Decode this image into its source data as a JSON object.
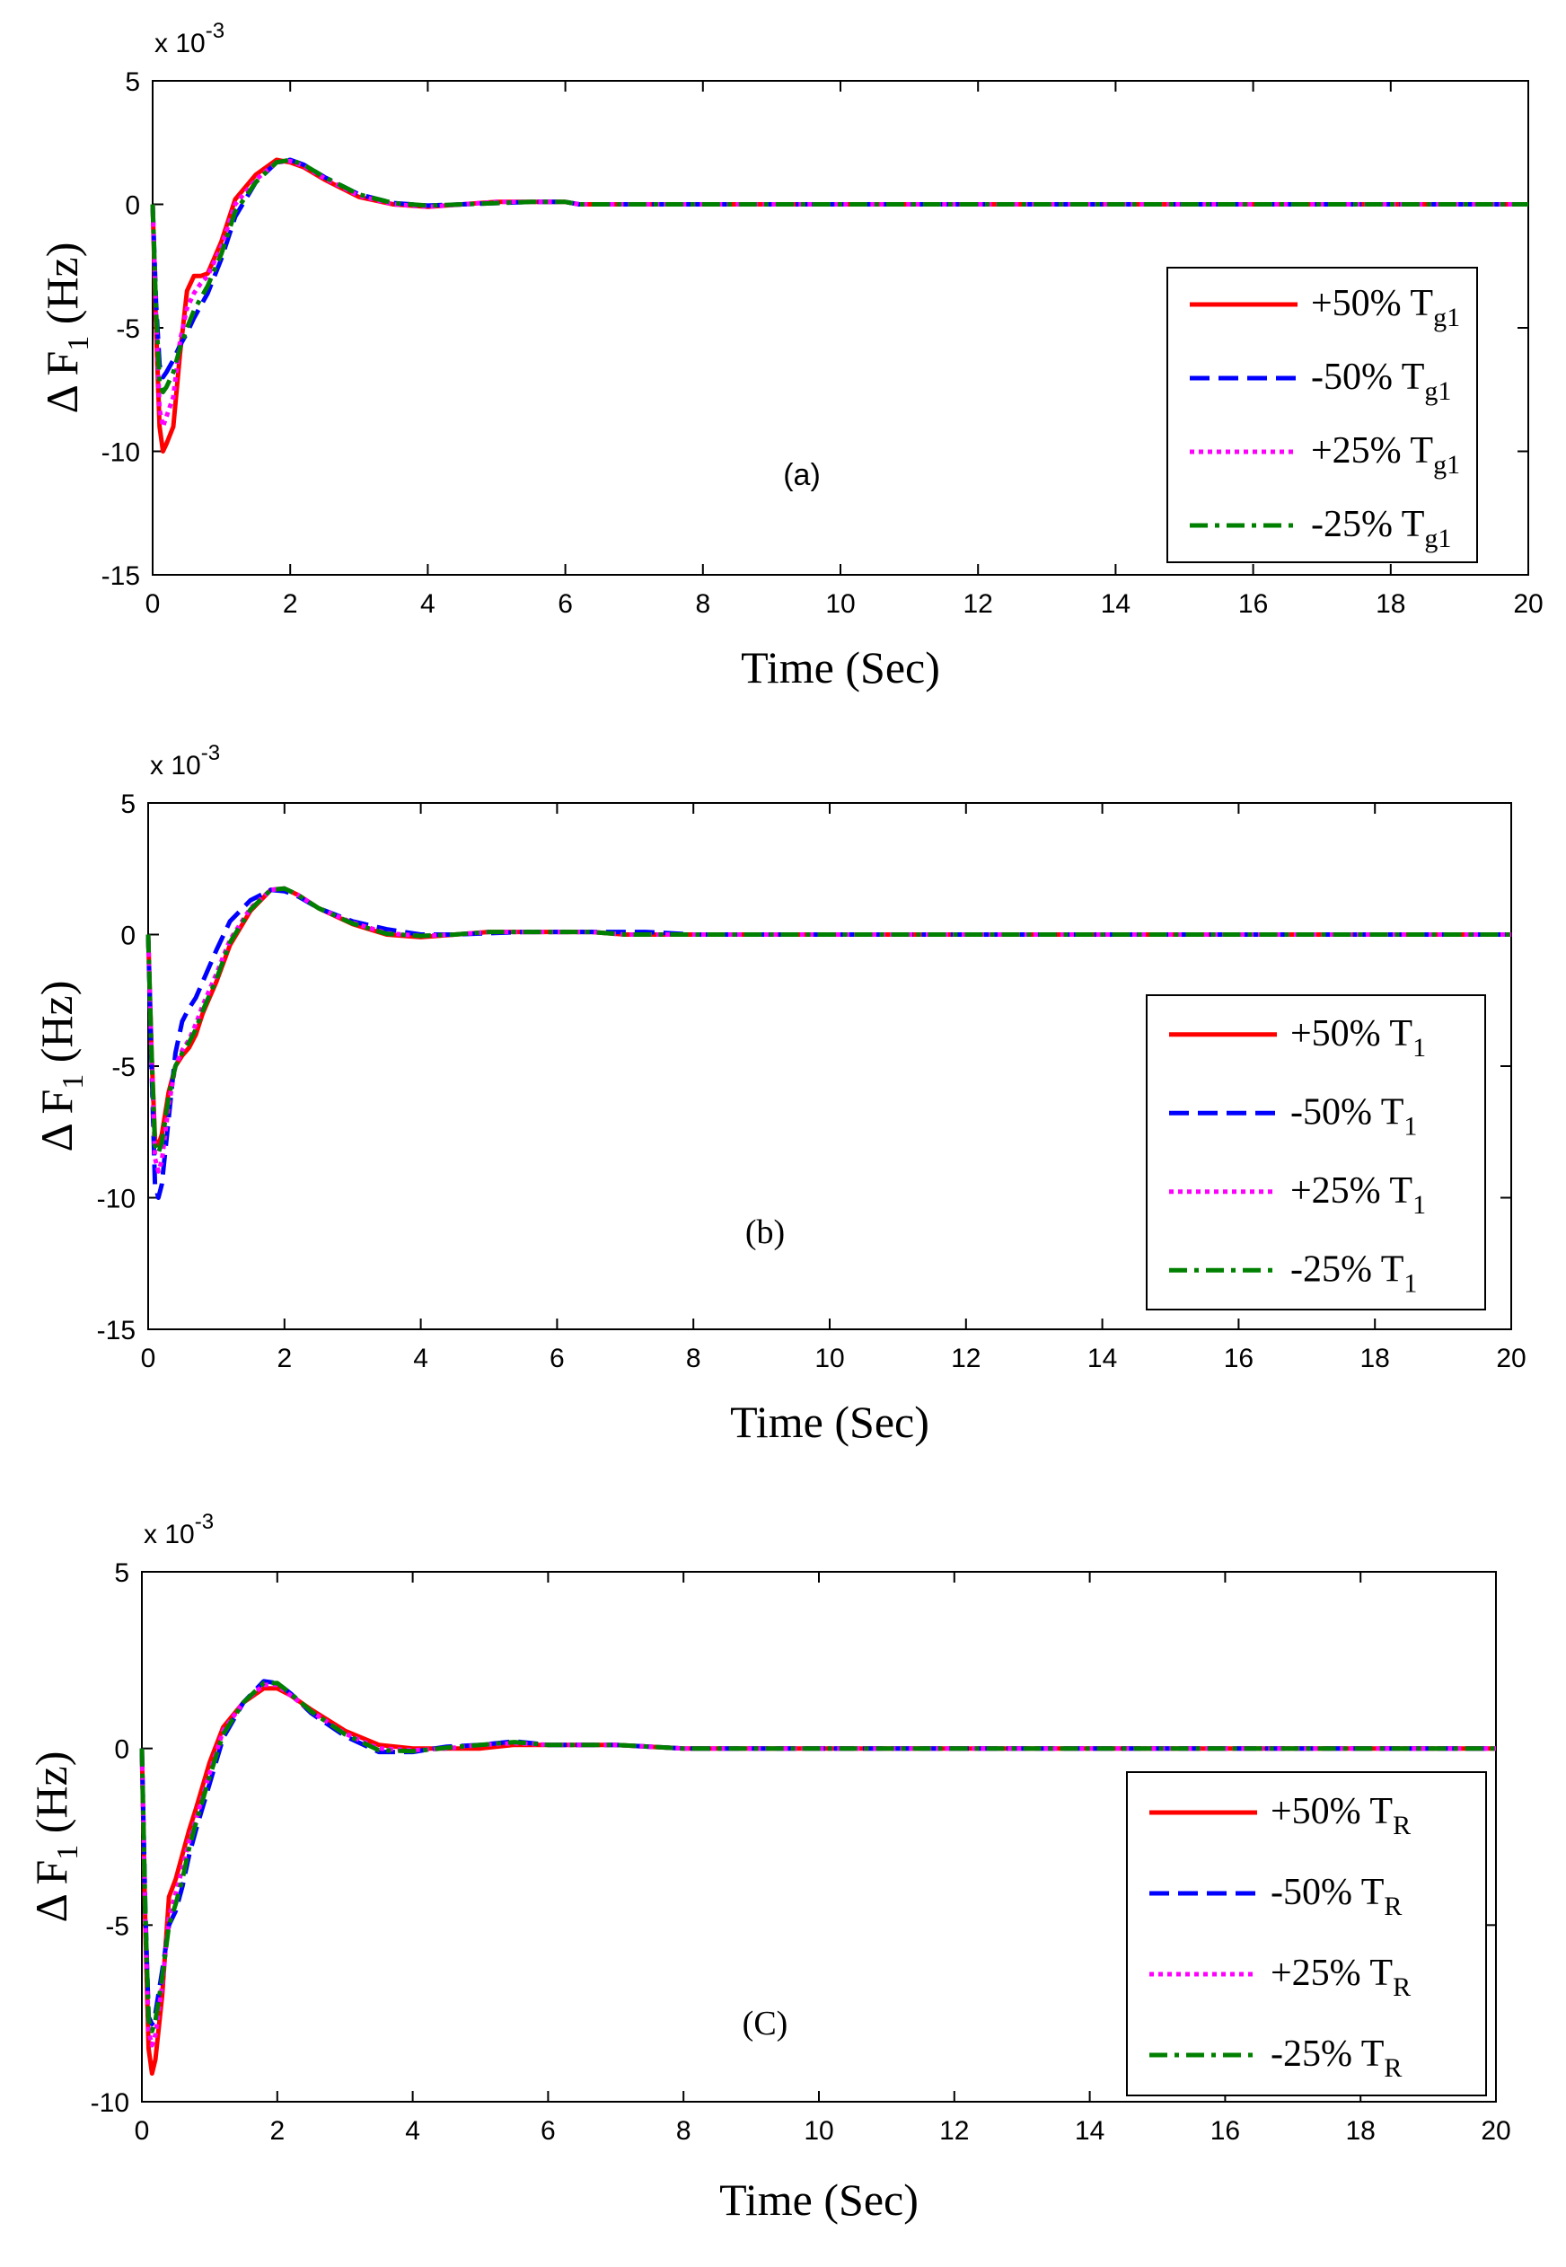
{
  "chart_data": [
    {
      "type": "line",
      "panel_label": "(a)",
      "xlabel": "Time (Sec)",
      "ylabel": {
        "prefix": "Δ F",
        "sub": "1",
        "suffix": " (Hz)"
      },
      "y_multiplier": {
        "base": "x 10",
        "exp": "-3"
      },
      "xlim": [
        0,
        20
      ],
      "ylim": [
        -15,
        5
      ],
      "xticks": [
        "0",
        "2",
        "4",
        "6",
        "8",
        "10",
        "12",
        "14",
        "16",
        "18",
        "20"
      ],
      "yticks": [
        "5",
        "0",
        "-5",
        "-10",
        "-15"
      ],
      "series": [
        {
          "name": "+50% T",
          "sub": "g1",
          "color": "#ff0000",
          "style": "solid",
          "x": [
            0,
            0.05,
            0.1,
            0.15,
            0.2,
            0.3,
            0.4,
            0.5,
            0.6,
            0.7,
            0.8,
            1,
            1.2,
            1.5,
            1.8,
            2,
            2.2,
            2.5,
            3,
            3.5,
            4,
            4.5,
            5,
            5.5,
            6,
            6.2,
            7,
            8,
            10,
            12,
            14,
            16,
            18,
            20
          ],
          "y": [
            0,
            -5,
            -9,
            -10,
            -9.7,
            -9,
            -6,
            -3.5,
            -2.9,
            -2.9,
            -2.8,
            -1.5,
            0.2,
            1.2,
            1.8,
            1.7,
            1.5,
            1,
            0.3,
            0,
            -0.1,
            0,
            0.1,
            0.1,
            0.1,
            0,
            0,
            0,
            0,
            0,
            0,
            0,
            0,
            0
          ]
        },
        {
          "name": "-50% T",
          "sub": "g1",
          "color": "#0000ff",
          "style": "dashed",
          "x": [
            0,
            0.05,
            0.1,
            0.15,
            0.2,
            0.3,
            0.4,
            0.5,
            0.6,
            0.7,
            0.8,
            1,
            1.2,
            1.5,
            1.8,
            2,
            2.2,
            2.5,
            3,
            3.5,
            4,
            4.5,
            5,
            5.5,
            6,
            6.2,
            7,
            8,
            10,
            12,
            14,
            16,
            18,
            20
          ],
          "y": [
            0,
            -4,
            -6.5,
            -7,
            -6.8,
            -6.3,
            -5.7,
            -5.2,
            -4.6,
            -4.1,
            -3.6,
            -2.2,
            -0.5,
            0.9,
            1.7,
            1.8,
            1.6,
            1.1,
            0.4,
            0.05,
            -0.05,
            0,
            0.05,
            0.1,
            0.1,
            0,
            0,
            0,
            0,
            0,
            0,
            0,
            0,
            0
          ]
        },
        {
          "name": "+25% T",
          "sub": "g1",
          "color": "#ff00ff",
          "style": "dotted",
          "x": [
            0,
            0.05,
            0.1,
            0.15,
            0.2,
            0.3,
            0.4,
            0.5,
            0.6,
            0.7,
            0.8,
            1,
            1.2,
            1.5,
            1.8,
            2,
            2.2,
            2.5,
            3,
            3.5,
            4,
            4.5,
            5,
            5.5,
            6,
            6.2,
            7,
            8,
            10,
            12,
            14,
            16,
            18,
            20
          ],
          "y": [
            0,
            -4.5,
            -8.3,
            -9,
            -8.6,
            -7.8,
            -5.5,
            -4.2,
            -3.6,
            -3.2,
            -2.9,
            -1.7,
            0,
            1,
            1.7,
            1.75,
            1.55,
            1.05,
            0.35,
            0,
            -0.1,
            0,
            0.1,
            0.1,
            0.1,
            0,
            0,
            0,
            0,
            0,
            0,
            0,
            0,
            0
          ]
        },
        {
          "name": "-25% T",
          "sub": "g1",
          "color": "#008000",
          "style": "dashdot",
          "x": [
            0,
            0.05,
            0.1,
            0.15,
            0.2,
            0.3,
            0.4,
            0.5,
            0.6,
            0.7,
            0.8,
            1,
            1.2,
            1.5,
            1.8,
            2,
            2.2,
            2.5,
            3,
            3.5,
            4,
            4.5,
            5,
            5.5,
            6,
            6.2,
            7,
            8,
            10,
            12,
            14,
            16,
            18,
            20
          ],
          "y": [
            0,
            -4.3,
            -7.2,
            -7.6,
            -7.4,
            -6.8,
            -5.8,
            -5,
            -4.3,
            -3.8,
            -3.3,
            -2,
            -0.3,
            0.9,
            1.7,
            1.8,
            1.6,
            1.1,
            0.4,
            0.05,
            -0.05,
            0,
            0.05,
            0.1,
            0.1,
            0,
            0,
            0,
            0,
            0,
            0,
            0,
            0,
            0
          ]
        }
      ]
    },
    {
      "type": "line",
      "panel_label": "(b)",
      "xlabel": "Time (Sec)",
      "ylabel": {
        "prefix": "Δ F",
        "sub": "1",
        "suffix": " (Hz)"
      },
      "y_multiplier": {
        "base": "x 10",
        "exp": "-3"
      },
      "xlim": [
        0,
        20
      ],
      "ylim": [
        -15,
        5
      ],
      "xticks": [
        "0",
        "2",
        "4",
        "6",
        "8",
        "10",
        "12",
        "14",
        "16",
        "18",
        "20"
      ],
      "yticks": [
        "5",
        "0",
        "-5",
        "-10",
        "-15"
      ],
      "series": [
        {
          "name": "+50% T",
          "sub": "1",
          "color": "#ff0000",
          "style": "solid",
          "x": [
            0,
            0.05,
            0.1,
            0.15,
            0.2,
            0.3,
            0.4,
            0.5,
            0.6,
            0.7,
            0.8,
            1,
            1.2,
            1.5,
            1.8,
            2,
            2.2,
            2.5,
            3,
            3.5,
            4,
            4.5,
            5,
            5.5,
            6,
            6.5,
            7,
            8,
            10,
            12,
            14,
            16,
            18,
            20
          ],
          "y": [
            0,
            -4.5,
            -7.8,
            -8,
            -7.6,
            -6,
            -5,
            -4.6,
            -4.3,
            -3.8,
            -3,
            -1.8,
            -0.4,
            0.9,
            1.7,
            1.75,
            1.5,
            1,
            0.4,
            0,
            -0.1,
            0,
            0.1,
            0.1,
            0.1,
            0.1,
            0,
            0,
            0,
            0,
            0,
            0,
            0,
            0
          ]
        },
        {
          "name": "-50% T",
          "sub": "1",
          "color": "#0000ff",
          "style": "dashed",
          "x": [
            0,
            0.05,
            0.1,
            0.15,
            0.2,
            0.3,
            0.4,
            0.5,
            0.6,
            0.7,
            0.8,
            1,
            1.2,
            1.5,
            1.8,
            2,
            2.2,
            2.5,
            3,
            3.5,
            4,
            4.5,
            5,
            5.5,
            6,
            6.5,
            7,
            7.3,
            8,
            10,
            12,
            14,
            16,
            18,
            20
          ],
          "y": [
            0,
            -5,
            -9.5,
            -10,
            -9.5,
            -7,
            -4.5,
            -3.3,
            -2.8,
            -2.4,
            -1.8,
            -0.6,
            0.5,
            1.3,
            1.7,
            1.65,
            1.45,
            1,
            0.5,
            0.2,
            0,
            0,
            0.05,
            0.1,
            0.1,
            0.1,
            0.1,
            0.1,
            0,
            0,
            0,
            0,
            0,
            0,
            0
          ]
        },
        {
          "name": "+25% T",
          "sub": "1",
          "color": "#ff00ff",
          "style": "dotted",
          "x": [
            0,
            0.05,
            0.1,
            0.15,
            0.2,
            0.3,
            0.4,
            0.5,
            0.6,
            0.7,
            0.8,
            1,
            1.2,
            1.5,
            1.8,
            2,
            2.2,
            2.5,
            3,
            3.5,
            4,
            4.5,
            5,
            5.5,
            6,
            6.5,
            7,
            8,
            10,
            12,
            14,
            16,
            18,
            20
          ],
          "y": [
            0,
            -4.6,
            -8.5,
            -9,
            -8.6,
            -6.5,
            -5,
            -4.4,
            -4,
            -3.4,
            -2.7,
            -1.5,
            -0.2,
            1,
            1.7,
            1.75,
            1.5,
            1,
            0.45,
            0.05,
            -0.05,
            0,
            0.1,
            0.1,
            0.1,
            0.1,
            0,
            0,
            0,
            0,
            0,
            0,
            0,
            0
          ]
        },
        {
          "name": "-25% T",
          "sub": "1",
          "color": "#008000",
          "style": "dashdot",
          "x": [
            0,
            0.05,
            0.1,
            0.15,
            0.2,
            0.3,
            0.4,
            0.5,
            0.6,
            0.7,
            0.8,
            1,
            1.2,
            1.5,
            1.8,
            2,
            2.2,
            2.5,
            3,
            3.5,
            4,
            4.5,
            5,
            5.5,
            6,
            6.5,
            7,
            8,
            10,
            12,
            14,
            16,
            18,
            20
          ],
          "y": [
            0,
            -4.5,
            -8,
            -8.3,
            -7.9,
            -6.2,
            -5,
            -4.5,
            -4.1,
            -3.6,
            -2.9,
            -1.7,
            -0.3,
            0.95,
            1.7,
            1.75,
            1.5,
            1,
            0.42,
            0.03,
            -0.05,
            0,
            0.1,
            0.1,
            0.1,
            0.1,
            0,
            0,
            0,
            0,
            0,
            0,
            0,
            0
          ]
        }
      ]
    },
    {
      "type": "line",
      "panel_label": "(C)",
      "xlabel": "Time (Sec)",
      "ylabel": {
        "prefix": "Δ F",
        "sub": "1",
        "suffix": " (Hz)"
      },
      "y_multiplier": {
        "base": "x 10",
        "exp": "-3"
      },
      "xlim": [
        0,
        20
      ],
      "ylim": [
        -10,
        5
      ],
      "xticks": [
        "0",
        "2",
        "4",
        "6",
        "8",
        "10",
        "12",
        "14",
        "16",
        "18",
        "20"
      ],
      "yticks": [
        "5",
        "0",
        "-5",
        "-10"
      ],
      "series": [
        {
          "name": "+50% T",
          "sub": "R",
          "color": "#ff0000",
          "style": "solid",
          "x": [
            0,
            0.05,
            0.1,
            0.15,
            0.2,
            0.3,
            0.4,
            0.5,
            0.6,
            0.7,
            0.8,
            1,
            1.2,
            1.5,
            1.8,
            2,
            2.2,
            2.5,
            3,
            3.5,
            4,
            4.5,
            5,
            5.5,
            6,
            6.5,
            7,
            8,
            10,
            12,
            14,
            16,
            18,
            20
          ],
          "y": [
            0,
            -5,
            -8.5,
            -9.2,
            -8.8,
            -7,
            -4.2,
            -3.7,
            -3,
            -2.3,
            -1.7,
            -0.4,
            0.6,
            1.3,
            1.7,
            1.7,
            1.5,
            1.1,
            0.5,
            0.1,
            0,
            0,
            0,
            0.1,
            0.1,
            0.1,
            0.1,
            0,
            0,
            0,
            0,
            0,
            0,
            0
          ]
        },
        {
          "name": "-50% T",
          "sub": "R",
          "color": "#0000ff",
          "style": "dashed",
          "x": [
            0,
            0.05,
            0.1,
            0.15,
            0.2,
            0.3,
            0.4,
            0.5,
            0.6,
            0.7,
            0.8,
            1,
            1.2,
            1.5,
            1.8,
            2,
            2.2,
            2.5,
            3,
            3.5,
            4,
            4.5,
            5,
            5.5,
            6,
            6.5,
            7,
            8,
            10,
            12,
            14,
            16,
            18,
            20
          ],
          "y": [
            0,
            -4.5,
            -7.6,
            -7.8,
            -7.5,
            -6.3,
            -5,
            -4.6,
            -3.9,
            -3,
            -2.3,
            -1,
            0.3,
            1.3,
            1.9,
            1.85,
            1.55,
            1,
            0.35,
            -0.1,
            -0.1,
            0.05,
            0.1,
            0.2,
            0.1,
            0.1,
            0.1,
            0,
            0,
            0,
            0,
            0,
            0,
            0
          ]
        },
        {
          "name": "+25% T",
          "sub": "R",
          "color": "#ff00ff",
          "style": "dotted",
          "x": [
            0,
            0.05,
            0.1,
            0.15,
            0.2,
            0.3,
            0.4,
            0.5,
            0.6,
            0.7,
            0.8,
            1,
            1.2,
            1.5,
            1.8,
            2,
            2.2,
            2.5,
            3,
            3.5,
            4,
            4.5,
            5,
            5.5,
            6,
            6.5,
            7,
            8,
            10,
            12,
            14,
            16,
            18,
            20
          ],
          "y": [
            0,
            -4.8,
            -8,
            -8.4,
            -8.1,
            -6.7,
            -4.8,
            -4.1,
            -3.4,
            -2.6,
            -2,
            -0.7,
            0.5,
            1.3,
            1.8,
            1.8,
            1.5,
            1.05,
            0.42,
            0,
            -0.05,
            0,
            0.1,
            0.15,
            0.1,
            0.1,
            0.1,
            0,
            0,
            0,
            0,
            0,
            0,
            0
          ]
        },
        {
          "name": "-25% T",
          "sub": "R",
          "color": "#008000",
          "style": "dashdot",
          "x": [
            0,
            0.05,
            0.1,
            0.15,
            0.2,
            0.3,
            0.4,
            0.5,
            0.6,
            0.7,
            0.8,
            1,
            1.2,
            1.5,
            1.8,
            2,
            2.2,
            2.5,
            3,
            3.5,
            4,
            4.5,
            5,
            5.5,
            6,
            6.5,
            7,
            8,
            10,
            12,
            14,
            16,
            18,
            20
          ],
          "y": [
            0,
            -4.6,
            -7.7,
            -8,
            -7.7,
            -6.5,
            -5,
            -4.4,
            -3.7,
            -2.8,
            -2.1,
            -0.8,
            0.4,
            1.3,
            1.85,
            1.85,
            1.55,
            1.05,
            0.4,
            -0.05,
            -0.08,
            0.02,
            0.1,
            0.18,
            0.1,
            0.1,
            0.1,
            0,
            0,
            0,
            0,
            0,
            0,
            0
          ]
        }
      ]
    }
  ]
}
